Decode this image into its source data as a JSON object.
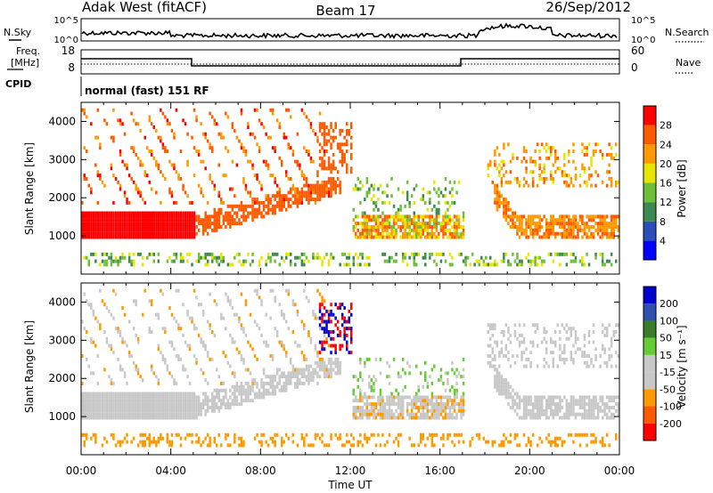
{
  "header": {
    "station": "Adak West (fitACF)",
    "beam": "Beam 17",
    "date": "26/Sep/2012"
  },
  "noise_panel": {
    "left_label": "N.Sky",
    "right_label": "N.Search",
    "left_ticks": [
      "10^5",
      "10^0"
    ],
    "right_ticks": [
      "10^5",
      "10^0"
    ]
  },
  "freq_panel": {
    "left_label_line1": "Freq.",
    "left_label_line2": "[MHz]",
    "right_label": "Nave",
    "left_ticks": [
      "18",
      "8"
    ],
    "right_ticks": [
      "60",
      "0"
    ],
    "cpid_label": "CPID",
    "cpid_text": "normal (fast) 151 RF"
  },
  "colors": {
    "power": [
      "#0000ff",
      "#2a4fb8",
      "#3d8a50",
      "#6fbf3a",
      "#e6e600",
      "#ff9900",
      "#ff5a00",
      "#ff0000"
    ],
    "velocity": [
      "#ff0000",
      "#ff5a00",
      "#ff9900",
      "#c8c8c8",
      "#c8c8c8",
      "#66cc33",
      "#3a7d2a",
      "#3050b0",
      "#0000cc"
    ]
  },
  "chart_data": [
    {
      "type": "heatmap",
      "name": "power",
      "xlabel": "",
      "ylabel": "Slant Range [km]",
      "xlim": [
        0,
        24
      ],
      "ylim": [
        0,
        4500
      ],
      "yticks": [
        "1000",
        "2000",
        "3000",
        "4000"
      ],
      "colorbar_label": "Power [dB]",
      "colorbar_ticks": [
        "4",
        "8",
        "12",
        "16",
        "20",
        "24",
        "28"
      ]
    },
    {
      "type": "heatmap",
      "name": "velocity",
      "xlabel": "Time UT",
      "ylabel": "Slant Range [km]",
      "xlim": [
        0,
        24
      ],
      "ylim": [
        0,
        4500
      ],
      "xticks": [
        "00:00",
        "04:00",
        "08:00",
        "12:00",
        "16:00",
        "20:00",
        "00:00"
      ],
      "yticks": [
        "1000",
        "2000",
        "3000",
        "4000"
      ],
      "colorbar_label": "Velocity [m s⁻¹]",
      "colorbar_ticks": [
        "200",
        "100",
        "50",
        "15",
        "-15",
        "-50",
        "-100",
        "-200"
      ]
    }
  ]
}
